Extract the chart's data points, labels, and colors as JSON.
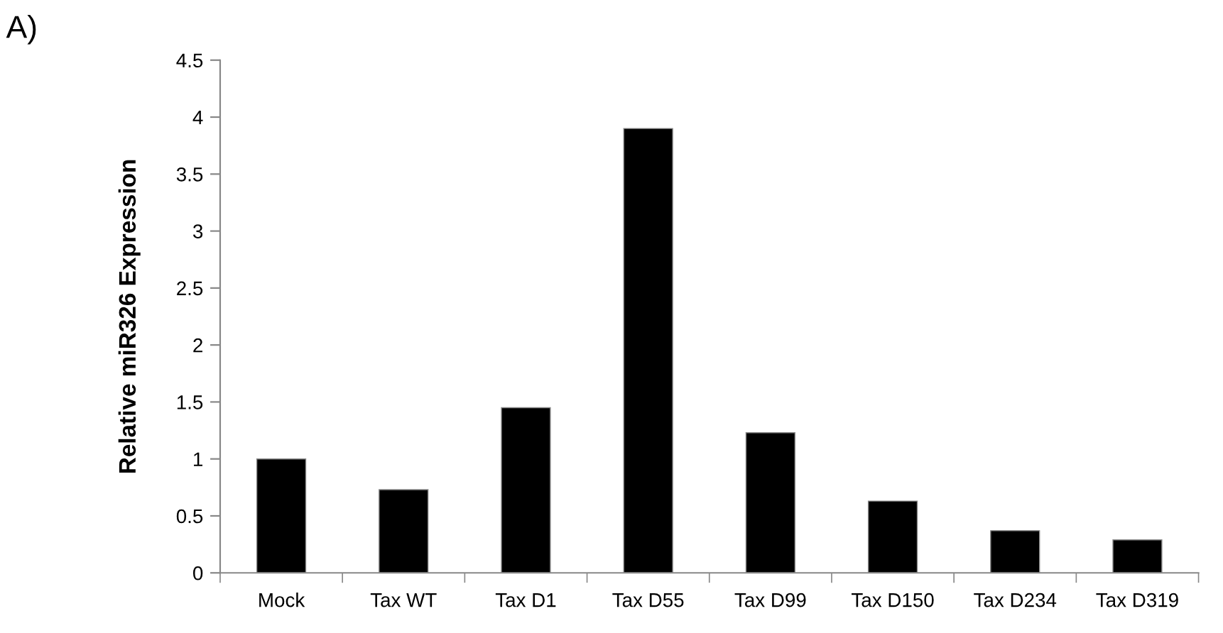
{
  "chart_data": {
    "type": "bar",
    "ylabel": "Relative miR326 Expression",
    "annotations": [
      "A)"
    ],
    "categories": [
      "Mock",
      "Tax WT",
      "Tax D1",
      "Tax D55",
      "Tax D99",
      "Tax D150",
      "Tax D234",
      "Tax D319"
    ],
    "values": [
      1.0,
      0.73,
      1.45,
      3.9,
      1.23,
      0.63,
      0.37,
      0.29
    ],
    "color": "#000000",
    "ylim": [
      0,
      4.5
    ],
    "yticks": [
      0,
      {
        "value": 0.5,
        "label": "0.5"
      },
      1,
      {
        "value": 1.5,
        "label": "1.5"
      },
      2,
      {
        "value": 2.5,
        "label": "2.5"
      },
      3,
      {
        "value": 3.5,
        "label": "3.5"
      },
      4,
      {
        "value": 4.5,
        "label": "4.5"
      }
    ],
    "grid": false,
    "legend": false
  }
}
